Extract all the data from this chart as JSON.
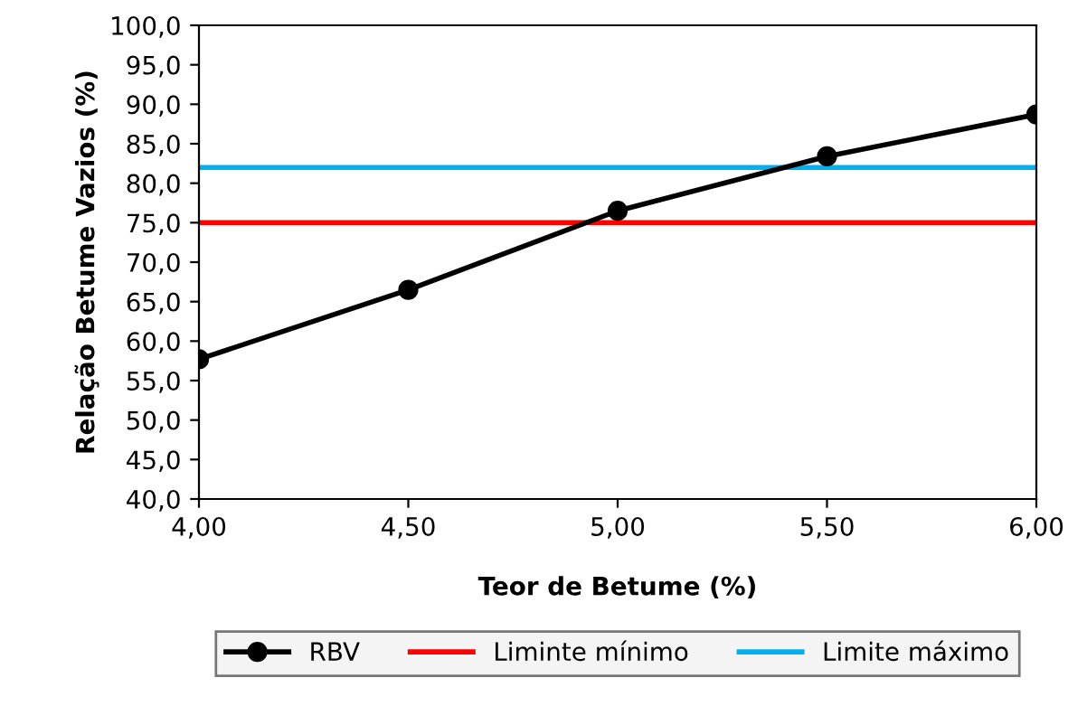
{
  "chart_data": {
    "type": "line",
    "xlabel": "Teor de Betume (%)",
    "ylabel": "Relação Betume Vazios (%)",
    "x": [
      4.0,
      4.5,
      5.0,
      5.5,
      6.0
    ],
    "series": [
      {
        "name": "RBV",
        "color": "#000000",
        "values": [
          57.7,
          66.5,
          76.5,
          83.4,
          88.7
        ]
      }
    ],
    "ref_lines": [
      {
        "axis": "y",
        "value": 75,
        "label": "Liminte mínimo",
        "color": "#ff0000"
      },
      {
        "axis": "y",
        "value": 82,
        "label": "Limite máximo",
        "color": "#00b0f0"
      }
    ],
    "xlim": [
      4.0,
      6.0
    ],
    "xticks": [
      {
        "value": 4.0,
        "label": "4,00"
      },
      {
        "value": 4.5,
        "label": "4,50"
      },
      {
        "value": 5.0,
        "label": "5,00"
      },
      {
        "value": 5.5,
        "label": "5,50"
      },
      {
        "value": 6.0,
        "label": "6,00"
      }
    ],
    "ylim": [
      40,
      100
    ],
    "yticks": [
      {
        "value": 40,
        "label": "40,0"
      },
      {
        "value": 45,
        "label": "45,0"
      },
      {
        "value": 50,
        "label": "50,0"
      },
      {
        "value": 55,
        "label": "55,0"
      },
      {
        "value": 60,
        "label": "60,0"
      },
      {
        "value": 65,
        "label": "65,0"
      },
      {
        "value": 70,
        "label": "70,0"
      },
      {
        "value": 75,
        "label": "75,0"
      },
      {
        "value": 80,
        "label": "80,0"
      },
      {
        "value": 85,
        "label": "85,0"
      },
      {
        "value": 90,
        "label": "90,0"
      },
      {
        "value": 95,
        "label": "95,0"
      },
      {
        "value": 100,
        "label": "100,0"
      }
    ],
    "grid": false,
    "legend": "bottom",
    "marker": "circle",
    "line_style": "solid"
  }
}
